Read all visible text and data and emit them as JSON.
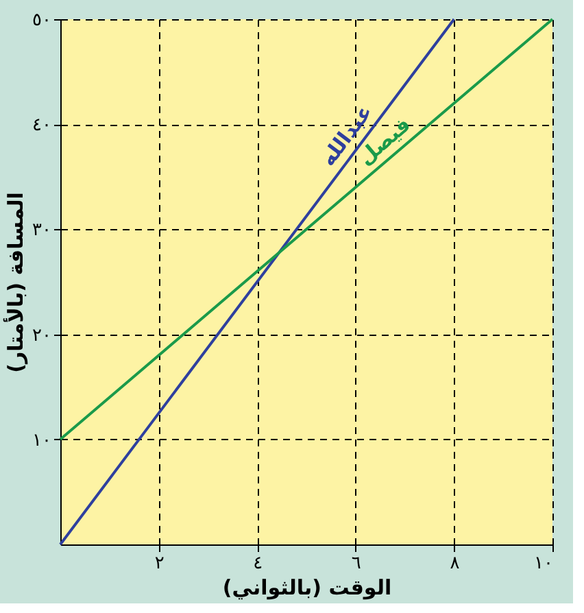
{
  "chart_data": {
    "type": "line",
    "xlabel": "الوقت (بالثواني)",
    "ylabel": "المسافة (بالأمتار)",
    "xlim": [
      0,
      10
    ],
    "ylim": [
      0,
      50
    ],
    "xticks": [
      {
        "value": 2,
        "label": "٢"
      },
      {
        "value": 4,
        "label": "٤"
      },
      {
        "value": 6,
        "label": "٦"
      },
      {
        "value": 8,
        "label": "٨"
      },
      {
        "value": 10,
        "label": "١٠"
      }
    ],
    "yticks": [
      {
        "value": 10,
        "label": "١٠"
      },
      {
        "value": 20,
        "label": "٢٠"
      },
      {
        "value": 30,
        "label": "٣٠"
      },
      {
        "value": 40,
        "label": "٤٠"
      },
      {
        "value": 50,
        "label": "٥٠"
      }
    ],
    "series": [
      {
        "name": "عبدالله",
        "color": "#2e3f9e",
        "x": [
          0,
          8
        ],
        "values": [
          0,
          50
        ]
      },
      {
        "name": "فيصل",
        "color": "#1a9a4a",
        "x": [
          0,
          10
        ],
        "values": [
          10,
          50
        ]
      }
    ],
    "grid": true,
    "legend": false,
    "marker": "none",
    "line_style": "solid"
  }
}
